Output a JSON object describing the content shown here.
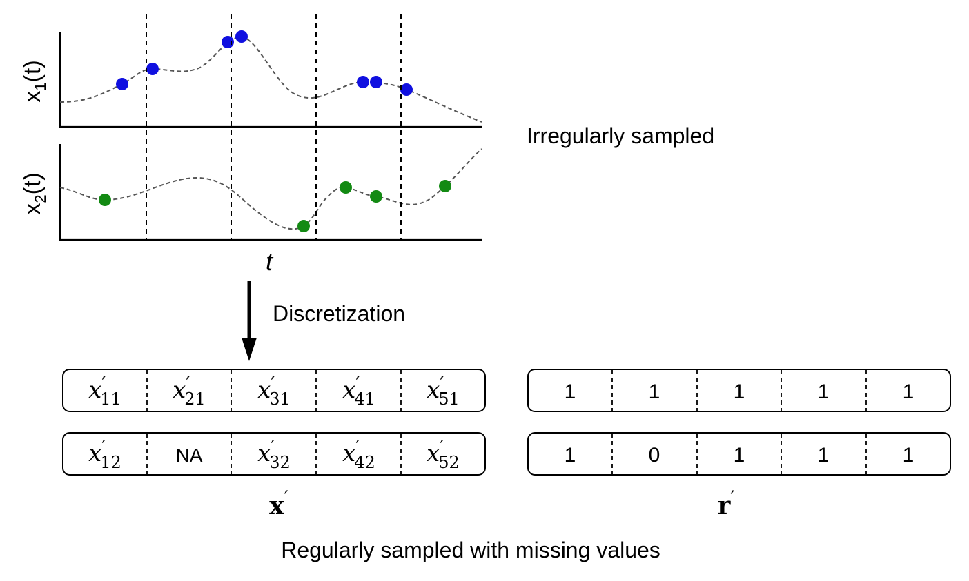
{
  "plots": {
    "x1": {
      "label_base": "x",
      "label_sub": "1",
      "label_arg": "(t)",
      "point_color": "#1010e0",
      "curve_color": "#555555"
    },
    "x2": {
      "label_base": "x",
      "label_sub": "2",
      "label_arg": "(t)",
      "point_color": "#138a13",
      "curve_color": "#555555"
    },
    "t_label": "t"
  },
  "text": {
    "irregular": "Irregularly sampled",
    "discretization": "Discretization",
    "regular": "Regularly sampled with missing values"
  },
  "matrix_x": {
    "label": "x",
    "rows": [
      [
        {
          "base": "x",
          "prime": "′",
          "sub": "11"
        },
        {
          "base": "x",
          "prime": "′",
          "sub": "21"
        },
        {
          "base": "x",
          "prime": "′",
          "sub": "31"
        },
        {
          "base": "x",
          "prime": "′",
          "sub": "41"
        },
        {
          "base": "x",
          "prime": "′",
          "sub": "51"
        }
      ],
      [
        {
          "base": "x",
          "prime": "′",
          "sub": "12"
        },
        {
          "text": "NA"
        },
        {
          "base": "x",
          "prime": "′",
          "sub": "32"
        },
        {
          "base": "x",
          "prime": "′",
          "sub": "42"
        },
        {
          "base": "x",
          "prime": "′",
          "sub": "52"
        }
      ]
    ]
  },
  "matrix_r": {
    "label": "r",
    "rows": [
      [
        "1",
        "1",
        "1",
        "1",
        "1"
      ],
      [
        "1",
        "0",
        "1",
        "1",
        "1"
      ]
    ]
  },
  "prime_mark": "′"
}
